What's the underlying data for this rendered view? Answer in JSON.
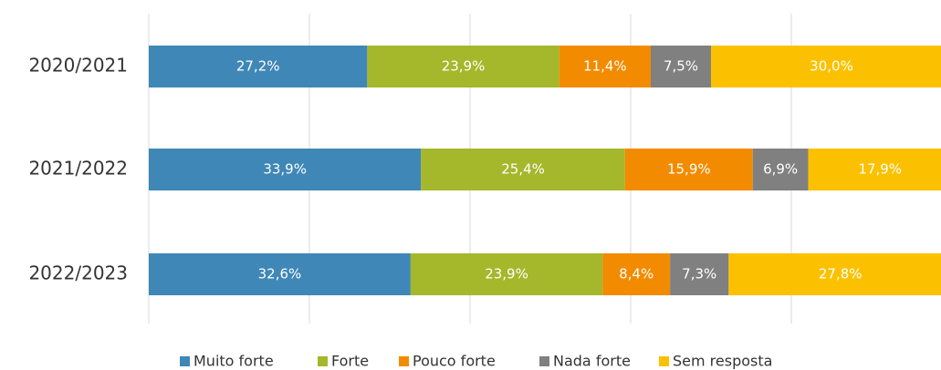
{
  "chart_data": {
    "type": "stacked-barh",
    "categories": [
      "2020/2021",
      "2021/2022",
      "2022/2023"
    ],
    "series": [
      {
        "name": "Muito forte",
        "color": "#3f87b6",
        "values": [
          27.2,
          33.9,
          32.6
        ],
        "value_labels": [
          "27,2%",
          "33,9%",
          "32,6%"
        ]
      },
      {
        "name": "Forte",
        "color": "#a5b72b",
        "values": [
          23.9,
          25.4,
          23.9
        ],
        "value_labels": [
          "23,9%",
          "25,4%",
          "23,9%"
        ]
      },
      {
        "name": "Pouco forte",
        "color": "#f28b00",
        "values": [
          11.4,
          15.9,
          8.4
        ],
        "value_labels": [
          "11,4%",
          "15,9%",
          "8,4%"
        ]
      },
      {
        "name": "Nada forte",
        "color": "#808080",
        "values": [
          7.5,
          6.9,
          7.3
        ],
        "value_labels": [
          "7,5%",
          "6,9%",
          "7,3%"
        ]
      },
      {
        "name": "Sem resposta",
        "color": "#fbc100",
        "values": [
          30.0,
          17.9,
          27.8
        ],
        "value_labels": [
          "30,0%",
          "17,9%",
          "27,8%"
        ]
      }
    ],
    "xlim": [
      0,
      100
    ],
    "xticks": [
      0,
      20,
      40,
      60,
      80,
      100
    ],
    "grid": true,
    "legend": "bottom"
  }
}
